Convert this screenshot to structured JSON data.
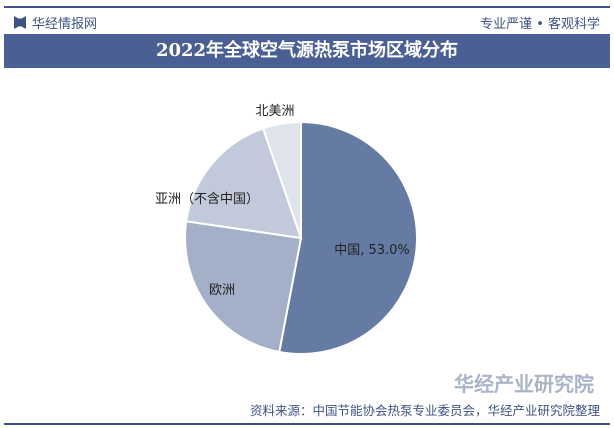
{
  "header": {
    "brand": "华经情报网",
    "slogan": "专业严谨 • 客观科学"
  },
  "watermark": "华经产业研究院",
  "source": "资料来源：中国节能协会热泵专业委员会，华经产业研究院整理",
  "chart_data": {
    "type": "pie",
    "title": "2022年全球空气源热泵市场区域分布",
    "start": "top",
    "direction": "clockwise",
    "slices": [
      {
        "name": "中国",
        "value": 53.0,
        "label": "中国, 53.0%",
        "color": "#667ba3"
      },
      {
        "name": "欧洲",
        "value": 24.3,
        "label": "欧洲",
        "color": "#a4afc8"
      },
      {
        "name": "亚洲（不含中国）",
        "value": 17.4,
        "label": "亚洲（不含中国）",
        "color": "#c2c9db"
      },
      {
        "name": "北美洲",
        "value": 5.3,
        "label": "北美洲",
        "color": "#dfe3ec"
      }
    ]
  }
}
